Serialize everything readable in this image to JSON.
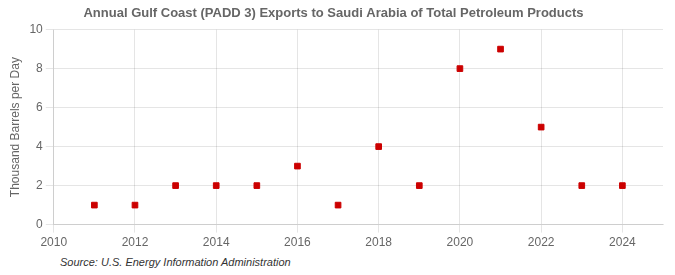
{
  "chart_data": {
    "type": "scatter",
    "title": "Annual Gulf Coast (PADD 3) Exports to Saudi Arabia of Total Petroleum Products",
    "y_label": "Thousand Barrels per Day",
    "annotations": [
      "Source: U.S. Energy Information Administration"
    ],
    "x": [
      2011,
      2012,
      2013,
      2014,
      2015,
      2016,
      2017,
      2018,
      2019,
      2020,
      2021,
      2022,
      2023,
      2024
    ],
    "values": [
      1,
      1,
      2,
      2,
      2,
      3,
      1,
      4,
      2,
      8,
      9,
      5,
      2,
      2
    ],
    "color": "#cc0000",
    "marker": "square",
    "xlim": [
      2010,
      2025
    ],
    "xticks": [
      2010,
      2012,
      2014,
      2016,
      2018,
      2020,
      2022,
      2024
    ],
    "ylim": [
      0,
      10
    ],
    "yticks": [
      0,
      2,
      4,
      6,
      8,
      10
    ],
    "grid": true
  }
}
